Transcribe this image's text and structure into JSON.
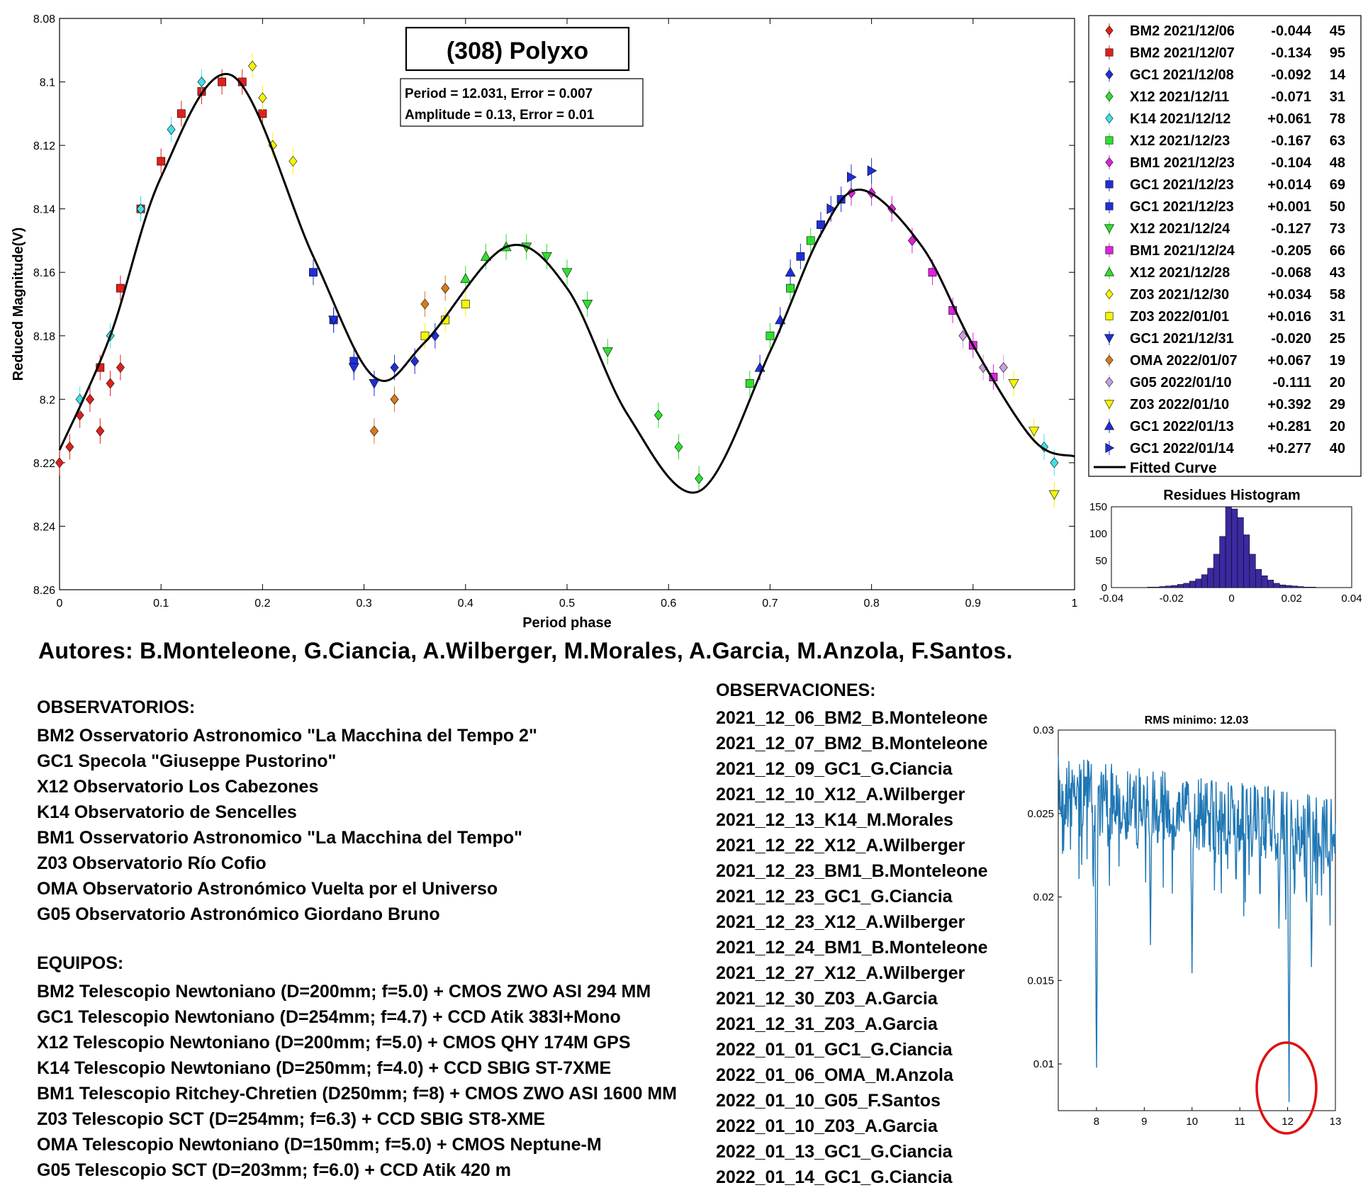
{
  "main_chart": {
    "title": "(308) Polyxo",
    "info_lines": [
      "Period =  12.031, Error = 0.007",
      "Amplitude = 0.13, Error = 0.01"
    ],
    "xlabel": "Period phase",
    "ylabel": "Reduced Magnitude(V)",
    "y_ticks": [
      "8.08",
      "8.1",
      "8.12",
      "8.14",
      "8.16",
      "8.18",
      "8.2",
      "8.22",
      "8.24",
      "8.26"
    ],
    "x_ticks": [
      "0",
      "0.1",
      "0.2",
      "0.3",
      "0.4",
      "0.5",
      "0.6",
      "0.7",
      "0.8",
      "0.9",
      "1"
    ],
    "legend_fitted": "Fitted Curve"
  },
  "chart_data": [
    {
      "type": "scatter",
      "title": "(308) Polyxo",
      "xlabel": "Period phase",
      "ylabel": "Reduced Magnitude(V)",
      "xlim": [
        0,
        1
      ],
      "ylim": [
        8.08,
        8.26
      ],
      "y_reversed": true,
      "legend_position": "outside-right",
      "fitted_curve": {
        "name": "Fitted Curve",
        "color": "#000000",
        "x": [
          0.0,
          0.05,
          0.1,
          0.17,
          0.25,
          0.31,
          0.36,
          0.44,
          0.5,
          0.56,
          0.63,
          0.7,
          0.75,
          0.79,
          0.85,
          0.9,
          0.96,
          1.0
        ],
        "y": [
          8.216,
          8.18,
          8.13,
          8.098,
          8.155,
          8.193,
          8.182,
          8.152,
          8.165,
          8.205,
          8.229,
          8.185,
          8.148,
          8.134,
          8.152,
          8.183,
          8.213,
          8.218
        ]
      },
      "series": [
        {
          "name": "BM2 2021/12/06",
          "offset": "-0.044",
          "count": "45",
          "marker": "diamond",
          "color": "#e0201a",
          "x": [
            0.0,
            0.01,
            0.02,
            0.03,
            0.04,
            0.05,
            0.06
          ],
          "y": [
            8.22,
            8.215,
            8.205,
            8.2,
            8.21,
            8.195,
            8.19
          ]
        },
        {
          "name": "BM2 2021/12/07",
          "offset": "-0.134",
          "count": "95",
          "marker": "square",
          "color": "#e0201a",
          "x": [
            0.04,
            0.06,
            0.08,
            0.1,
            0.12,
            0.14,
            0.16,
            0.18,
            0.2
          ],
          "y": [
            8.19,
            8.165,
            8.14,
            8.125,
            8.11,
            8.103,
            8.1,
            8.1,
            8.11
          ]
        },
        {
          "name": "GC1 2021/12/08",
          "offset": "-0.092",
          "count": "14",
          "marker": "diamond",
          "color": "#1f2fd8",
          "x": [
            0.33,
            0.35,
            0.37
          ],
          "y": [
            8.19,
            8.188,
            8.18
          ]
        },
        {
          "name": "X12 2021/12/11",
          "offset": "-0.071",
          "count": "31",
          "marker": "diamond",
          "color": "#2ee02e",
          "x": [
            0.59,
            0.61,
            0.63
          ],
          "y": [
            8.205,
            8.215,
            8.225
          ]
        },
        {
          "name": "K14 2021/12/12",
          "offset": "+0.061",
          "count": "78",
          "marker": "diamond",
          "color": "#40e0e8",
          "x": [
            0.02,
            0.05,
            0.08,
            0.11,
            0.14,
            0.97,
            0.98
          ],
          "y": [
            8.2,
            8.18,
            8.14,
            8.115,
            8.1,
            8.215,
            8.22
          ]
        },
        {
          "name": "X12 2021/12/23",
          "offset": "-0.167",
          "count": "63",
          "marker": "square",
          "color": "#2ee02e",
          "x": [
            0.68,
            0.7,
            0.72,
            0.74
          ],
          "y": [
            8.195,
            8.18,
            8.165,
            8.15
          ]
        },
        {
          "name": "BM1 2021/12/23",
          "offset": "-0.104",
          "count": "48",
          "marker": "diamond",
          "color": "#e020e0",
          "x": [
            0.78,
            0.8,
            0.82,
            0.84
          ],
          "y": [
            8.135,
            8.135,
            8.14,
            8.15
          ]
        },
        {
          "name": "GC1 2021/12/23",
          "offset": "+0.014",
          "count": "69",
          "marker": "square",
          "color": "#1f2fd8",
          "x": [
            0.25,
            0.27,
            0.29
          ],
          "y": [
            8.16,
            8.175,
            8.188
          ]
        },
        {
          "name": "GC1 2021/12/23",
          "offset": "+0.001",
          "count": "50",
          "marker": "square",
          "color": "#1f2fd8",
          "x": [
            0.73,
            0.75,
            0.77
          ],
          "y": [
            8.155,
            8.145,
            8.137
          ]
        },
        {
          "name": "X12 2021/12/24",
          "offset": "-0.127",
          "count": "73",
          "marker": "triangle-down",
          "color": "#2ee02e",
          "x": [
            0.46,
            0.48,
            0.5,
            0.52,
            0.54
          ],
          "y": [
            8.152,
            8.155,
            8.16,
            8.17,
            8.185
          ]
        },
        {
          "name": "BM1 2021/12/24",
          "offset": "-0.205",
          "count": "66",
          "marker": "square",
          "color": "#e020e0",
          "x": [
            0.86,
            0.88,
            0.9,
            0.92
          ],
          "y": [
            8.16,
            8.172,
            8.183,
            8.193
          ]
        },
        {
          "name": "X12 2021/12/28",
          "offset": "-0.068",
          "count": "43",
          "marker": "triangle-up",
          "color": "#2ee02e",
          "x": [
            0.4,
            0.42,
            0.44
          ],
          "y": [
            8.162,
            8.155,
            8.152
          ]
        },
        {
          "name": "Z03 2021/12/30",
          "offset": "+0.034",
          "count": "58",
          "marker": "diamond",
          "color": "#f5f500",
          "x": [
            0.19,
            0.2,
            0.21,
            0.23
          ],
          "y": [
            8.095,
            8.105,
            8.12,
            8.125
          ]
        },
        {
          "name": "Z03 2022/01/01",
          "offset": "+0.016",
          "count": "31",
          "marker": "square",
          "color": "#f5f500",
          "x": [
            0.36,
            0.38,
            0.4
          ],
          "y": [
            8.18,
            8.175,
            8.17
          ]
        },
        {
          "name": "GC1 2021/12/31",
          "offset": "-0.020",
          "count": "25",
          "marker": "triangle-down",
          "color": "#1f2fd8",
          "x": [
            0.27,
            0.29,
            0.31
          ],
          "y": [
            8.175,
            8.19,
            8.195
          ]
        },
        {
          "name": "OMA 2022/01/07",
          "offset": "+0.067",
          "count": "19",
          "marker": "diamond",
          "color": "#d97a1a",
          "x": [
            0.31,
            0.33,
            0.36,
            0.38
          ],
          "y": [
            8.21,
            8.2,
            8.17,
            8.165
          ]
        },
        {
          "name": "G05 2022/01/10",
          "offset": "-0.111",
          "count": "20",
          "marker": "diamond",
          "color": "#c9a0e0",
          "x": [
            0.89,
            0.91,
            0.93
          ],
          "y": [
            8.18,
            8.19,
            8.19
          ]
        },
        {
          "name": "Z03 2022/01/10",
          "offset": "+0.392",
          "count": "29",
          "marker": "triangle-down",
          "color": "#f5f500",
          "x": [
            0.94,
            0.96,
            0.98
          ],
          "y": [
            8.195,
            8.21,
            8.23
          ]
        },
        {
          "name": "GC1 2022/01/13",
          "offset": "+0.281",
          "count": "20",
          "marker": "triangle-up",
          "color": "#1f2fd8",
          "x": [
            0.69,
            0.71,
            0.72
          ],
          "y": [
            8.19,
            8.175,
            8.16
          ]
        },
        {
          "name": "GC1 2022/01/14",
          "offset": "+0.277",
          "count": "40",
          "marker": "triangle-right",
          "color": "#1f2fd8",
          "x": [
            0.76,
            0.78,
            0.8
          ],
          "y": [
            8.14,
            8.13,
            8.128
          ]
        }
      ]
    },
    {
      "type": "bar",
      "title": "Residues Histogram",
      "xlim": [
        -0.04,
        0.04
      ],
      "ylim": [
        0,
        150
      ],
      "x_ticks": [
        "-0.04",
        "-0.02",
        "0",
        "0.02",
        "0.04"
      ],
      "y_ticks": [
        "0",
        "50",
        "100",
        "150"
      ],
      "color": "#3a2aa0",
      "bin_width": 0.002,
      "bin_centers": [
        -0.027,
        -0.025,
        -0.023,
        -0.021,
        -0.019,
        -0.017,
        -0.015,
        -0.013,
        -0.011,
        -0.009,
        -0.007,
        -0.005,
        -0.003,
        -0.001,
        0.001,
        0.003,
        0.005,
        0.007,
        0.009,
        0.011,
        0.013,
        0.015,
        0.017,
        0.019,
        0.021,
        0.023,
        0.025,
        0.027
      ],
      "values": [
        1,
        1,
        2,
        3,
        4,
        6,
        8,
        12,
        16,
        24,
        36,
        62,
        95,
        150,
        146,
        130,
        98,
        62,
        34,
        22,
        14,
        8,
        5,
        4,
        3,
        2,
        1,
        1
      ]
    },
    {
      "type": "line",
      "title": "RMS minimo: 12.03",
      "xlim": [
        7.2,
        13
      ],
      "ylim": [
        0.0072,
        0.03
      ],
      "x_ticks": [
        "8",
        "9",
        "10",
        "11",
        "12",
        "13"
      ],
      "y_ticks": [
        "0.01",
        "0.015",
        "0.02",
        "0.025",
        "0.03"
      ],
      "color": "#1f77b4",
      "highlight": {
        "x": 12.03,
        "color": "#e01010",
        "shape": "ellipse"
      },
      "dips": [
        {
          "x": 8.0,
          "y": 0.008
        },
        {
          "x": 9.13,
          "y": 0.017
        },
        {
          "x": 10.0,
          "y": 0.0153
        },
        {
          "x": 10.92,
          "y": 0.02
        },
        {
          "x": 11.42,
          "y": 0.0205
        },
        {
          "x": 11.82,
          "y": 0.0175
        },
        {
          "x": 12.03,
          "y": 0.0075
        },
        {
          "x": 12.5,
          "y": 0.0152
        }
      ]
    }
  ],
  "authors": "Autores: B.Monteleone, G.Ciancia, A.Wilberger, M.Morales, A.Garcia, M.Anzola, F.Santos.",
  "observatories_title": "OBSERVATORIOS:",
  "observatories": [
    "BM2 Osservatorio Astronomico \"La Macchina del Tempo 2\"",
    "GC1 Specola \"Giuseppe Pustorino\"",
    "X12 Observatorio Los Cabezones",
    "K14 Observatorio de Sencelles",
    "BM1 Osservatorio Astronomico \"La Macchina del Tempo\"",
    "Z03 Observatorio Río Cofio",
    "OMA Observatorio Astronómico Vuelta por el Universo",
    "G05 Observatorio Astronómico Giordano Bruno"
  ],
  "equipment_title": "EQUIPOS:",
  "equipment": [
    "BM2 Telescopio Newtoniano (D=200mm; f=5.0) + CMOS ZWO ASI 294 MM",
    "GC1 Telescopio Newtoniano (D=254mm; f=4.7) + CCD Atik 383l+Mono",
    "X12 Telescopio Newtoniano (D=200mm; f=5.0) + CMOS QHY 174M GPS",
    "K14 Telescopio Newtoniano (D=250mm; f=4.0) + CCD SBIG ST-7XME",
    "BM1 Telescopio Ritchey-Chretien (D250mm; f=8) + CMOS ZWO ASI 1600 MM",
    "Z03 Telescopio SCT (D=254mm; f=6.3) + CCD SBIG ST8-XME",
    "OMA Telescopio Newtoniano (D=150mm; f=5.0) + CMOS Neptune-M",
    "G05 Telescopio SCT (D=203mm; f=6.0) + CCD Atik 420 m"
  ],
  "observations_title": "OBSERVACIONES:",
  "observations": [
    "2021_12_06_BM2_B.Monteleone",
    "2021_12_07_BM2_B.Monteleone",
    "2021_12_09_GC1_G.Ciancia",
    "2021_12_10_X12_A.Wilberger",
    "2021_12_13_K14_M.Morales",
    "2021_12_22_X12_A.Wilberger",
    "2021_12_23_BM1_B.Monteleone",
    "2021_12_23_GC1_G.Ciancia",
    "2021_12_23_X12_A.Wilberger",
    "2021_12_24_BM1_B.Monteleone",
    "2021_12_27_X12_A.Wilberger",
    "2021_12_30_Z03_A.Garcia",
    "2021_12_31_Z03_A.Garcia",
    "2022_01_01_GC1_G.Ciancia",
    "2022_01_06_OMA_M.Anzola",
    "2022_01_10_G05_F.Santos",
    "2022_01_10_Z03_A.Garcia",
    "2022_01_13_GC1_G.Ciancia",
    "2022_01_14_GC1_G.Ciancia"
  ]
}
